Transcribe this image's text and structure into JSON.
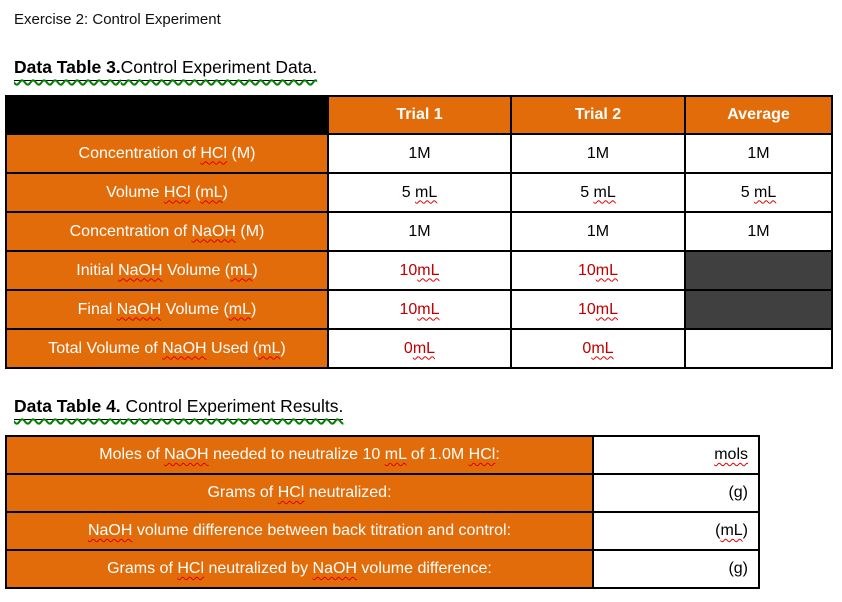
{
  "page": {
    "exercise_title": "Exercise 2: Control Experiment"
  },
  "colors": {
    "orange": "#E36C0A",
    "dark_cell": "#404040",
    "red_text": "#C00000",
    "spell_squiggle": "#E00000",
    "grammar_squiggle": "#008000",
    "border": "#000000"
  },
  "misspelled_tokens": [
    "NaOH",
    "HCl",
    "mols",
    "mL"
  ],
  "table3": {
    "heading_bold": "Data Table 3.",
    "heading_rest": "Control Experiment Data.",
    "column_headers": [
      "Trial 1",
      "Trial 2",
      "Average"
    ],
    "rows": [
      {
        "label": "Concentration of HCl (M)",
        "cells": [
          {
            "text": "1M"
          },
          {
            "text": "1M"
          },
          {
            "text": "1M"
          }
        ]
      },
      {
        "label": "Volume HCl (mL)",
        "cells": [
          {
            "text": "5 mL"
          },
          {
            "text": "5 mL"
          },
          {
            "text": "5 mL"
          }
        ]
      },
      {
        "label": "Concentration of NaOH (M)",
        "cells": [
          {
            "text": "1M"
          },
          {
            "text": "1M"
          },
          {
            "text": "1M"
          }
        ]
      },
      {
        "label": "Initial NaOH Volume (mL)",
        "cells": [
          {
            "text": "10mL",
            "red": true
          },
          {
            "text": "10mL",
            "red": true
          },
          {
            "text": "",
            "dark": true
          }
        ]
      },
      {
        "label": "Final NaOH Volume (mL)",
        "cells": [
          {
            "text": "10mL",
            "red": true
          },
          {
            "text": "10mL",
            "red": true
          },
          {
            "text": "",
            "dark": true
          }
        ]
      },
      {
        "label": "Total Volume of NaOH Used (mL)",
        "cells": [
          {
            "text": "0mL",
            "red": true
          },
          {
            "text": "0mL",
            "red": true
          },
          {
            "text": ""
          }
        ]
      }
    ]
  },
  "table4": {
    "heading_bold": "Data Table 4.",
    "heading_rest": " Control Experiment Results.",
    "rows": [
      {
        "label": "Moles of NaOH needed to neutralize 10 mL of 1.0M HCl:",
        "value": "mols"
      },
      {
        "label": "Grams of HCl neutralized:",
        "value": "(g)"
      },
      {
        "label": "NaOH volume difference between back titration and control:",
        "value": "(mL)"
      },
      {
        "label": "Grams of HCl neutralized by NaOH volume difference:",
        "value": "(g)"
      }
    ]
  }
}
